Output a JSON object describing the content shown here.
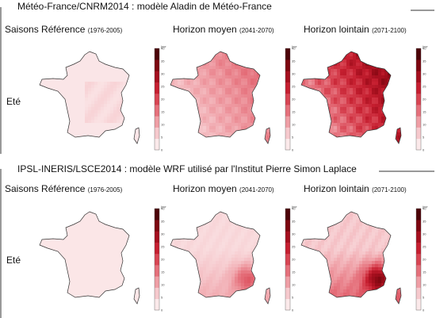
{
  "sections": [
    {
      "title": "Météo-France/CNRM2014 : modèle Aladin de Météo-France",
      "row_label": "Eté",
      "columns": [
        {
          "title": "Saisons Référence",
          "period": "(1976-2005)",
          "scenario": "reference",
          "intensity": 0.05
        },
        {
          "title": "Horizon moyen",
          "period": "(2041-2070)",
          "scenario": "mid",
          "intensity": 0.4
        },
        {
          "title": "Horizon lointain",
          "period": "(2071-2100)",
          "scenario": "far",
          "intensity": 0.85
        }
      ]
    },
    {
      "title": "IPSL-INERIS/LSCE2014 : modèle WRF utilisé par l'Institut Pierre Simon Laplace",
      "row_label": "Eté",
      "columns": [
        {
          "title": "Saisons Référence",
          "period": "(1976-2005)",
          "scenario": "reference",
          "intensity": 0.0
        },
        {
          "title": "Horizon moyen",
          "period": "(2041-2070)",
          "scenario": "mid",
          "intensity": 0.18
        },
        {
          "title": "Horizon lointain",
          "period": "(2071-2100)",
          "scenario": "far",
          "intensity": 0.35
        }
      ]
    }
  ],
  "legend": {
    "unit": "jour",
    "ticks": [
      "0",
      "5",
      "10",
      "15",
      "20",
      "25",
      "30",
      "35",
      "40"
    ],
    "range": [
      0,
      40
    ],
    "colors": [
      "#fbe9ea",
      "#f6c9cd",
      "#ef9ea5",
      "#e5707b",
      "#d84553",
      "#c61f30",
      "#a50f1e",
      "#7d0710",
      "#4d0208"
    ]
  }
}
